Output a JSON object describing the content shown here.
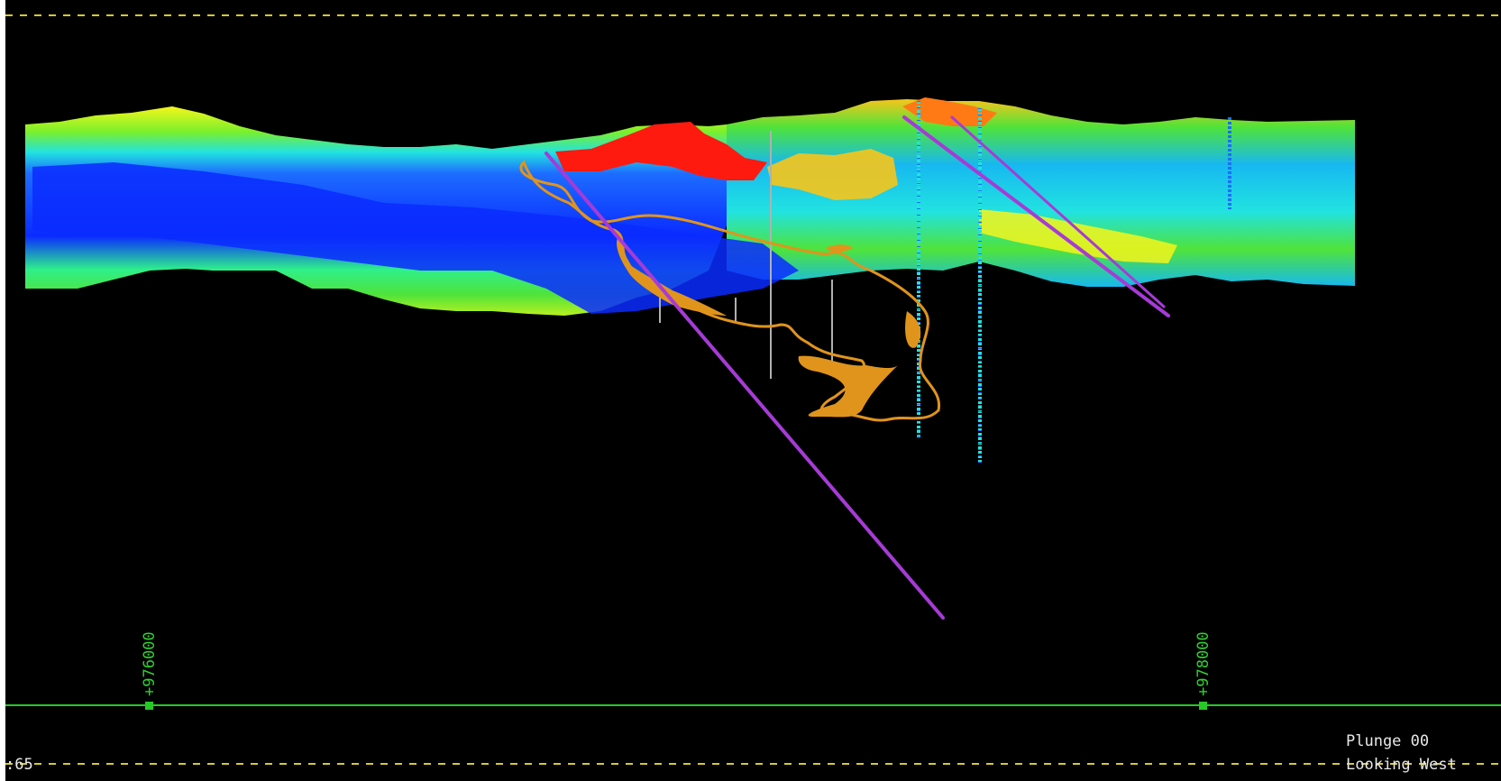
{
  "view": {
    "plunge_label": "Plunge 00",
    "looking_label": "Looking West",
    "corner_label": ":65",
    "grid_labels": [
      "+976000",
      "+978000"
    ]
  },
  "colors": {
    "background": "#000000",
    "dashed_boundary": "#d7c92a",
    "grid_line": "#27c927",
    "drillhole_trace": "#a63bd6",
    "solid_body": "#e0941c",
    "text": "#e8e8e8",
    "block_model_ramp": [
      "#0a2bff",
      "#1d6dff",
      "#17b8f0",
      "#21e3e0",
      "#2ef08a",
      "#4fe33a",
      "#b9f020",
      "#f5f51c",
      "#f7c51a",
      "#ff7a14",
      "#ff1a10"
    ]
  },
  "icons": {
    "grid_marker": "square-marker-icon"
  }
}
